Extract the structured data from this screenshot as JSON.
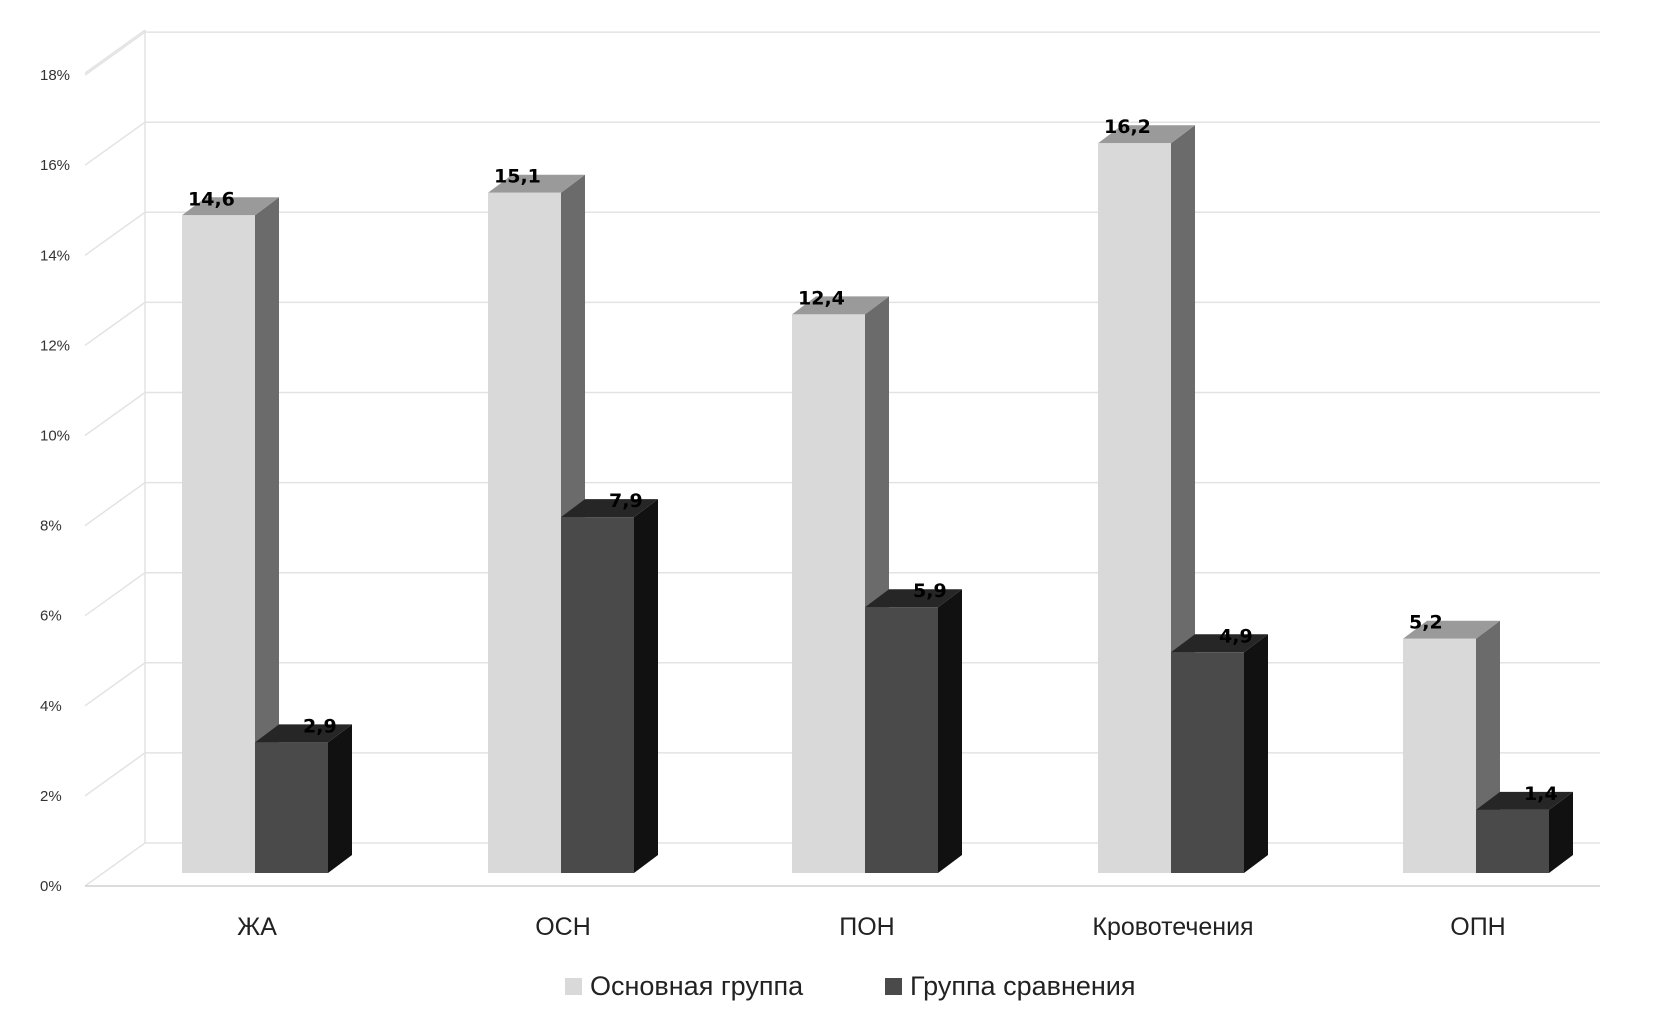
{
  "chart_data": {
    "type": "bar",
    "categories": [
      "ЖА",
      "ОСН",
      "ПОН",
      "Кровотечения",
      "ОПН"
    ],
    "series": [
      {
        "name": "Основная группа",
        "values": [
          14.6,
          15.1,
          12.4,
          16.2,
          5.2
        ],
        "labels": [
          "14,6",
          "15,1",
          "12,4",
          "16,2",
          "5,2"
        ],
        "colors": {
          "front": "#d9d9d9",
          "top": "#9a9a9a",
          "side": "#6b6b6b"
        }
      },
      {
        "name": "Группа сравнения",
        "values": [
          2.9,
          7.9,
          5.9,
          4.9,
          1.4
        ],
        "labels": [
          "2,9",
          "7,9",
          "5,9",
          "4,9",
          "1,4"
        ],
        "colors": {
          "front": "#4a4a4a",
          "top": "#262626",
          "side": "#111111"
        }
      }
    ],
    "ylim": [
      0,
      18
    ],
    "yticks": [
      0,
      2,
      4,
      6,
      8,
      10,
      12,
      14,
      16,
      18
    ],
    "ytick_labels": [
      "0%",
      "2%",
      "4%",
      "6%",
      "8%",
      "10%",
      "12%",
      "14%",
      "16%",
      "18%"
    ],
    "grid": true,
    "legend": "bottom",
    "style": "3d-clustered-column"
  }
}
